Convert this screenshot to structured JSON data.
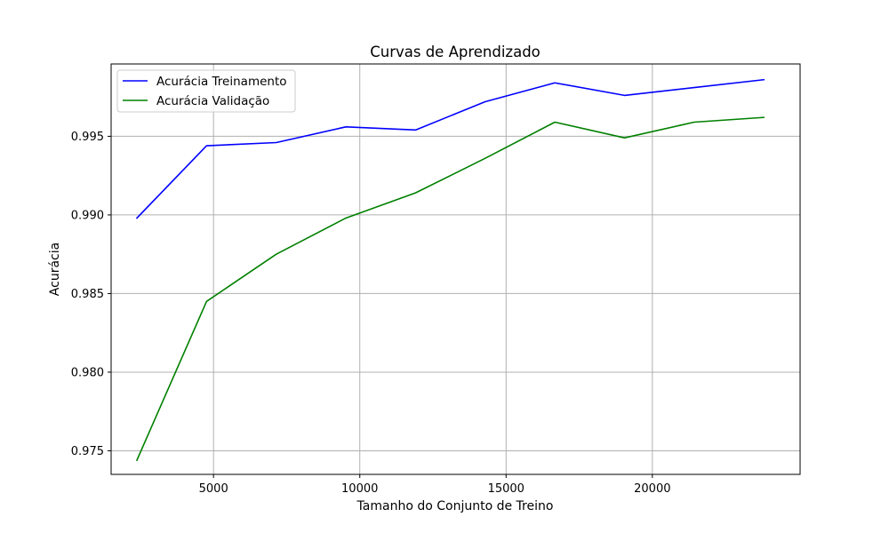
{
  "chart_data": {
    "type": "line",
    "title": "Curvas de Aprendizado",
    "xlabel": "Tamanho do Conjunto de Treino",
    "ylabel": "Acurácia",
    "xlim": [
      1500,
      25050
    ],
    "ylim": [
      0.9735,
      0.9996
    ],
    "xticks": [
      5000,
      10000,
      15000,
      20000
    ],
    "xtick_labels": [
      "5000",
      "10000",
      "15000",
      "20000"
    ],
    "yticks": [
      0.975,
      0.98,
      0.985,
      0.99,
      0.995
    ],
    "ytick_labels": [
      "0.975",
      "0.980",
      "0.985",
      "0.990",
      "0.995"
    ],
    "grid": true,
    "legend_position": "top-left",
    "x": [
      2381,
      4762,
      7143,
      9524,
      11905,
      14286,
      16667,
      19048,
      21429,
      23810
    ],
    "series": [
      {
        "name": "Acurácia Treinamento",
        "color": "#0000ff",
        "values": [
          0.9898,
          0.9944,
          0.9946,
          0.9956,
          0.9954,
          0.9972,
          0.9984,
          0.9976,
          0.9981,
          0.9986
        ]
      },
      {
        "name": "Acurácia Validação",
        "color": "#008000",
        "values": [
          0.9744,
          0.9845,
          0.9875,
          0.9898,
          0.9914,
          0.9936,
          0.9959,
          0.9949,
          0.9959,
          0.9962
        ]
      }
    ]
  }
}
